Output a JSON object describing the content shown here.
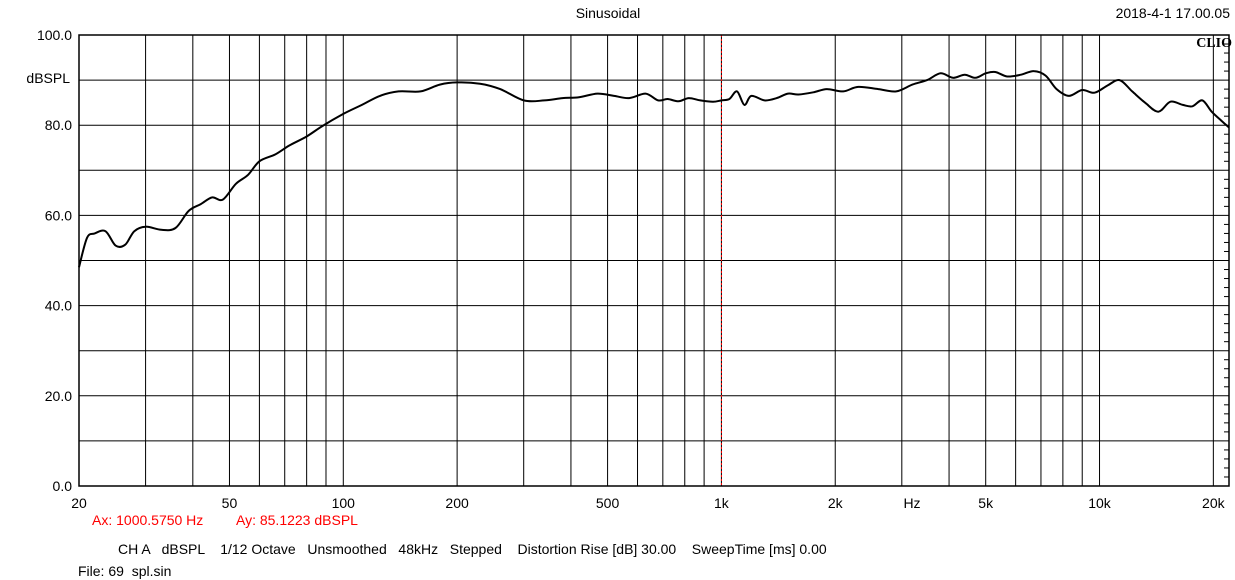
{
  "header": {
    "mode": "Sinusoidal",
    "datetime": "2018-4-1 17.00.05",
    "brand": "CLIO"
  },
  "cursor": {
    "ax_text": "Ax: 1000.5750 Hz",
    "ay_text": "Ay: 85.1223 dBSPL",
    "x": 1000.575,
    "y": 85.1223,
    "color": "#ff0000"
  },
  "footer": {
    "settings": "CH A   dBSPL    1/12 Octave   Unsmoothed   48kHz   Stepped    Distortion Rise [dB] 30.00    SweepTime [ms] 0.00",
    "file": "File: 69  spl.sin"
  },
  "chart_data": {
    "type": "line",
    "title": "",
    "xlabel": "Hz",
    "ylabel": "dBSPL",
    "x_scale": "log",
    "xlim": [
      20,
      22000
    ],
    "ylim": [
      0,
      100
    ],
    "grid": true,
    "x_ticks": [
      {
        "value": 20,
        "label": "20"
      },
      {
        "value": 50,
        "label": "50"
      },
      {
        "value": 100,
        "label": "100"
      },
      {
        "value": 200,
        "label": "200"
      },
      {
        "value": 500,
        "label": "500"
      },
      {
        "value": 1000,
        "label": "1k"
      },
      {
        "value": 2000,
        "label": "2k"
      },
      {
        "value": 5000,
        "label": "5k"
      },
      {
        "value": 10000,
        "label": "10k"
      },
      {
        "value": 20000,
        "label": "20k"
      }
    ],
    "y_ticks": [
      {
        "value": 0,
        "label": "0.0"
      },
      {
        "value": 20,
        "label": "20.0"
      },
      {
        "value": 40,
        "label": "40.0"
      },
      {
        "value": 60,
        "label": "60.0"
      },
      {
        "value": 80,
        "label": "80.0"
      },
      {
        "value": 100,
        "label": "100.0"
      }
    ],
    "series": [
      {
        "color": "#000000",
        "x": [
          20,
          21,
          22,
          23.5,
          25,
          26.5,
          28,
          30,
          33,
          36,
          39,
          42,
          45,
          48,
          52,
          56,
          60,
          66,
          72,
          80,
          88,
          100,
          112,
          125,
          140,
          160,
          180,
          200,
          230,
          260,
          300,
          340,
          380,
          420,
          470,
          520,
          570,
          630,
          680,
          720,
          770,
          820,
          880,
          950,
          1000,
          1050,
          1100,
          1150,
          1200,
          1300,
          1400,
          1500,
          1600,
          1750,
          1900,
          2100,
          2300,
          2600,
          2900,
          3200,
          3500,
          3800,
          4100,
          4400,
          4700,
          5000,
          5300,
          5700,
          6200,
          6700,
          7200,
          7700,
          8300,
          9000,
          9700,
          10500,
          11300,
          12200,
          13200,
          14300,
          15400,
          16600,
          17600,
          18700,
          19800,
          21000,
          22000
        ],
        "y": [
          48.5,
          55,
          56,
          56.5,
          53.3,
          53.5,
          56.5,
          57.5,
          56.8,
          57.2,
          61,
          62.5,
          64,
          63.5,
          67,
          69,
          72,
          73.5,
          75.5,
          77.5,
          79.8,
          82.5,
          84.5,
          86.5,
          87.5,
          87.5,
          89,
          89.5,
          89.2,
          88,
          85.5,
          85.5,
          86,
          86.2,
          87,
          86.5,
          86,
          87,
          85.5,
          85.8,
          85.3,
          86,
          85.5,
          85.2,
          85.5,
          85.8,
          87.5,
          84.5,
          86.5,
          85.5,
          86,
          87,
          86.8,
          87.3,
          88,
          87.5,
          88.5,
          88,
          87.5,
          89,
          90,
          91.5,
          90.5,
          91.2,
          90.5,
          91.5,
          91.8,
          90.8,
          91.2,
          92,
          91,
          88,
          86.5,
          87.8,
          87.2,
          88.8,
          90,
          87.5,
          85,
          83,
          85.2,
          84.5,
          84.2,
          85.5,
          83,
          81,
          79.5
        ]
      }
    ],
    "cursor_x": 1000.575
  }
}
